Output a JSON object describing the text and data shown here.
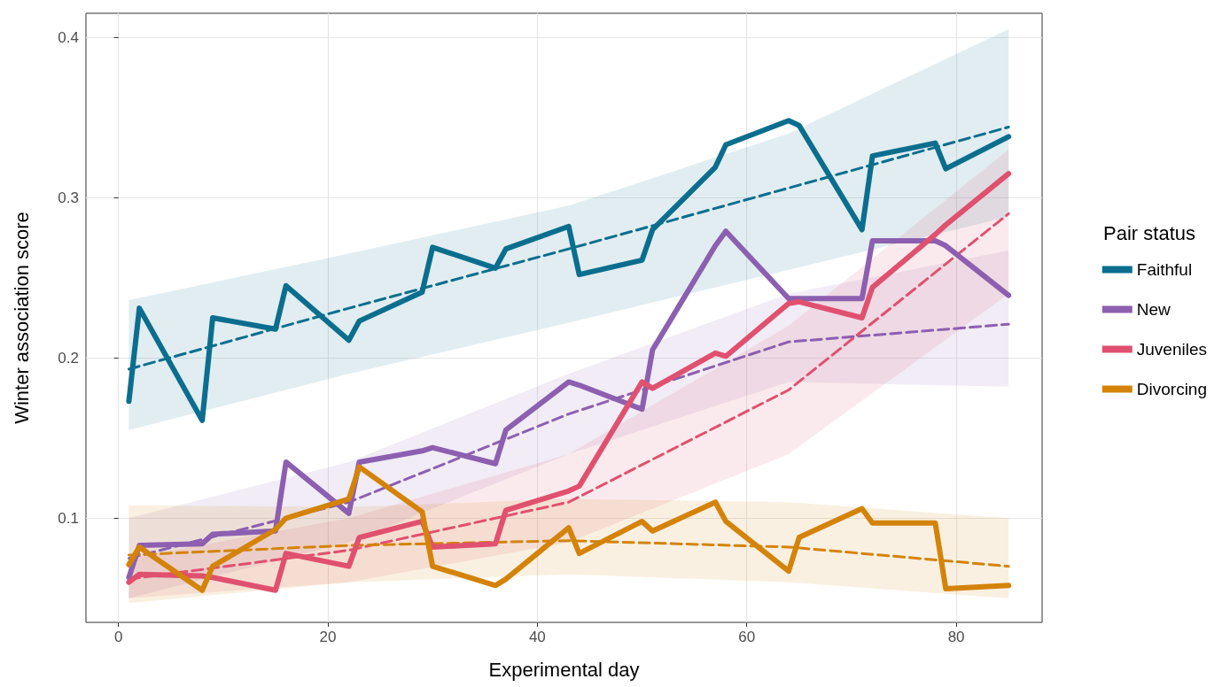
{
  "chart_data": {
    "type": "line",
    "xlabel": "Experimental day",
    "ylabel": "Winter association score",
    "legend_title": "Pair status",
    "legend": "right",
    "grid": true,
    "marker": "none",
    "x": [
      1,
      2,
      8,
      9,
      15,
      16,
      22,
      23,
      29,
      30,
      36,
      37,
      43,
      44,
      50,
      51,
      57,
      58,
      64,
      65,
      71,
      72,
      78,
      79,
      85
    ],
    "xlim": [
      -3.1,
      88.2
    ],
    "xticks": [
      0,
      20,
      40,
      60,
      80
    ],
    "ylim": [
      0.035,
      0.415
    ],
    "yticks": [
      0.1,
      0.2,
      0.3,
      0.4
    ],
    "series": [
      {
        "name": "Faithful",
        "color": "#0b6e8e",
        "line_style": "solid",
        "values": [
          0.173,
          0.231,
          0.161,
          0.225,
          0.218,
          0.245,
          0.211,
          0.223,
          0.241,
          0.269,
          0.256,
          0.268,
          0.282,
          0.252,
          0.261,
          0.28,
          0.319,
          0.333,
          0.348,
          0.345,
          0.28,
          0.326,
          0.334,
          0.318,
          0.338
        ]
      },
      {
        "name": "New",
        "color": "#8c5fb0",
        "line_style": "solid",
        "values": [
          0.063,
          0.083,
          0.084,
          0.09,
          0.092,
          0.135,
          0.103,
          0.135,
          0.142,
          0.144,
          0.134,
          0.155,
          0.185,
          0.183,
          0.168,
          0.205,
          0.27,
          0.279,
          0.237,
          0.237,
          0.237,
          0.273,
          0.273,
          0.27,
          0.239
        ]
      },
      {
        "name": "Juveniles",
        "color": "#e0506f",
        "line_style": "solid",
        "values": [
          0.06,
          0.065,
          0.064,
          0.063,
          0.055,
          0.078,
          0.07,
          0.088,
          0.098,
          0.082,
          0.084,
          0.105,
          0.117,
          0.12,
          0.185,
          0.181,
          0.203,
          0.201,
          0.234,
          0.235,
          0.225,
          0.244,
          0.277,
          0.283,
          0.315
        ]
      },
      {
        "name": "Divorcing",
        "color": "#d4830a",
        "line_style": "solid",
        "values": [
          0.071,
          0.082,
          0.055,
          0.07,
          0.093,
          0.1,
          0.112,
          0.132,
          0.104,
          0.07,
          0.058,
          0.062,
          0.094,
          0.078,
          0.098,
          0.092,
          0.11,
          0.098,
          0.067,
          0.088,
          0.106,
          0.097,
          0.097,
          0.056,
          0.058
        ]
      },
      {
        "color": "#0b6e8e",
        "line_style": "dashed",
        "x": [
          1,
          22,
          43,
          64,
          85
        ],
        "values": [
          0.193,
          0.231,
          0.268,
          0.306,
          0.344
        ],
        "lower": [
          0.155,
          0.19,
          0.222,
          0.255,
          0.288
        ],
        "upper": [
          0.236,
          0.265,
          0.295,
          0.34,
          0.405
        ]
      },
      {
        "color": "#8c5fb0",
        "line_style": "dashed",
        "x": [
          1,
          22,
          43,
          64,
          85
        ],
        "values": [
          0.075,
          0.11,
          0.165,
          0.21,
          0.221
        ],
        "lower": [
          0.05,
          0.085,
          0.14,
          0.185,
          0.182
        ],
        "upper": [
          0.1,
          0.135,
          0.19,
          0.24,
          0.267
        ]
      },
      {
        "color": "#e0506f",
        "line_style": "dashed",
        "x": [
          1,
          22,
          43,
          64,
          85
        ],
        "values": [
          0.062,
          0.08,
          0.11,
          0.18,
          0.29
        ],
        "lower": [
          0.05,
          0.06,
          0.085,
          0.14,
          0.24
        ],
        "upper": [
          0.075,
          0.1,
          0.14,
          0.22,
          0.33
        ]
      },
      {
        "color": "#d4830a",
        "line_style": "dashed",
        "x": [
          1,
          22,
          43,
          64,
          85
        ],
        "values": [
          0.077,
          0.083,
          0.086,
          0.082,
          0.07
        ],
        "lower": [
          0.047,
          0.06,
          0.065,
          0.06,
          0.05
        ],
        "upper": [
          0.108,
          0.107,
          0.112,
          0.11,
          0.1
        ]
      }
    ]
  }
}
